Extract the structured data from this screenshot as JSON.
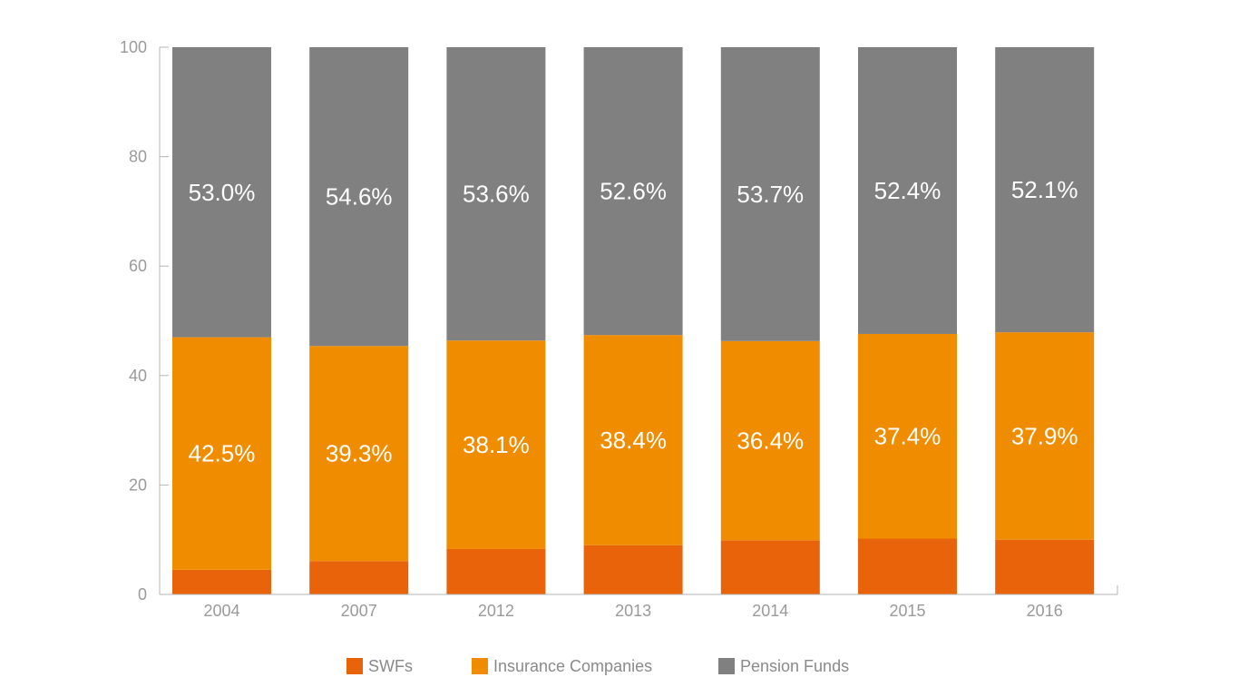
{
  "chart_data": {
    "type": "bar",
    "stacked": true,
    "categories": [
      "2004",
      "2007",
      "2012",
      "2013",
      "2014",
      "2015",
      "2016"
    ],
    "series": [
      {
        "name": "SWFs",
        "values": [
          4.5,
          6.1,
          8.3,
          9.0,
          9.9,
          10.2,
          10.0
        ],
        "color": "#e8630a"
      },
      {
        "name": "Insurance Companies",
        "values": [
          42.5,
          39.3,
          38.1,
          38.4,
          36.4,
          37.4,
          37.9
        ],
        "color": "#f08c00"
      },
      {
        "name": "Pension Funds",
        "values": [
          53.0,
          54.6,
          53.6,
          52.6,
          53.7,
          52.4,
          52.1
        ],
        "color": "#808080"
      }
    ],
    "data_labels": {
      "Insurance Companies": [
        "42.5%",
        "39.3%",
        "38.1%",
        "38.4%",
        "36.4%",
        "37.4%",
        "37.9%"
      ],
      "Pension Funds": [
        "53.0%",
        "54.6%",
        "53.6%",
        "52.6%",
        "53.7%",
        "52.4%",
        "52.1%"
      ]
    },
    "ylim": [
      0,
      100
    ],
    "yticks": [
      0,
      20,
      40,
      60,
      80,
      100
    ],
    "grid": false,
    "legend_position": "bottom",
    "title": "",
    "xlabel": "",
    "ylabel": ""
  }
}
